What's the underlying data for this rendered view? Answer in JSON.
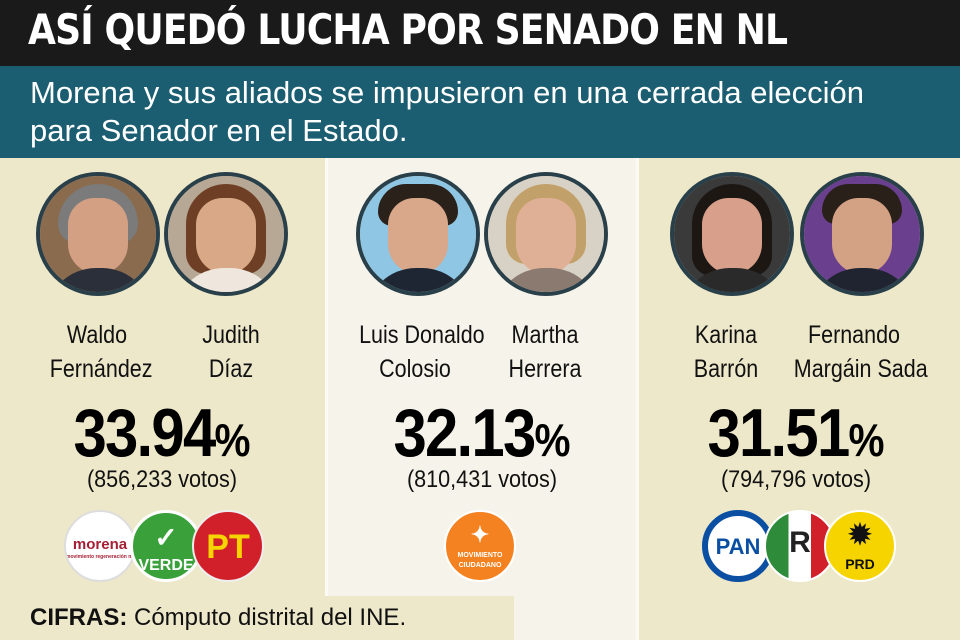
{
  "header": {
    "title": "ASÍ QUEDÓ LUCHA POR SENADO EN NL",
    "subtitle": "Morena y sus aliados se impusieron en una cerrada elección para Senador en el Estado."
  },
  "coalitions": [
    {
      "candidates": [
        {
          "first": "Waldo",
          "last": "Fernández"
        },
        {
          "first": "Judith",
          "last": "Díaz"
        }
      ],
      "percent": "33.94",
      "percent_sign": "%",
      "votes": "(856,233 votos)",
      "parties": [
        {
          "label": "morena",
          "sub": "movimiento regeneración nacional",
          "color": "#a51e33"
        },
        {
          "label": "VERDE",
          "color": "#3aa13a"
        },
        {
          "label": "PT",
          "color": "#d2202a"
        }
      ]
    },
    {
      "candidates": [
        {
          "first": "Luis Donaldo",
          "last": "Colosio"
        },
        {
          "first": "Martha",
          "last": "Herrera"
        }
      ],
      "percent": "32.13",
      "percent_sign": "%",
      "votes": "(810,431 votos)",
      "parties": [
        {
          "label": "MOVIMIENTO",
          "sub": "CIUDADANO",
          "color": "#f58220"
        }
      ]
    },
    {
      "candidates": [
        {
          "first": "Karina",
          "last": "Barrón"
        },
        {
          "first": "Fernando",
          "last": "Margáin Sada"
        }
      ],
      "percent": "31.51",
      "percent_sign": "%",
      "votes": "(794,796 votos)",
      "parties": [
        {
          "label": "PAN",
          "color": "#0b4fa3"
        },
        {
          "label": "R",
          "color": "#d2202a"
        },
        {
          "label": "PRD",
          "color": "#f5d400"
        }
      ]
    }
  ],
  "footer": {
    "label": "CIFRAS:",
    "text": " Cómputo distrital del INE."
  }
}
